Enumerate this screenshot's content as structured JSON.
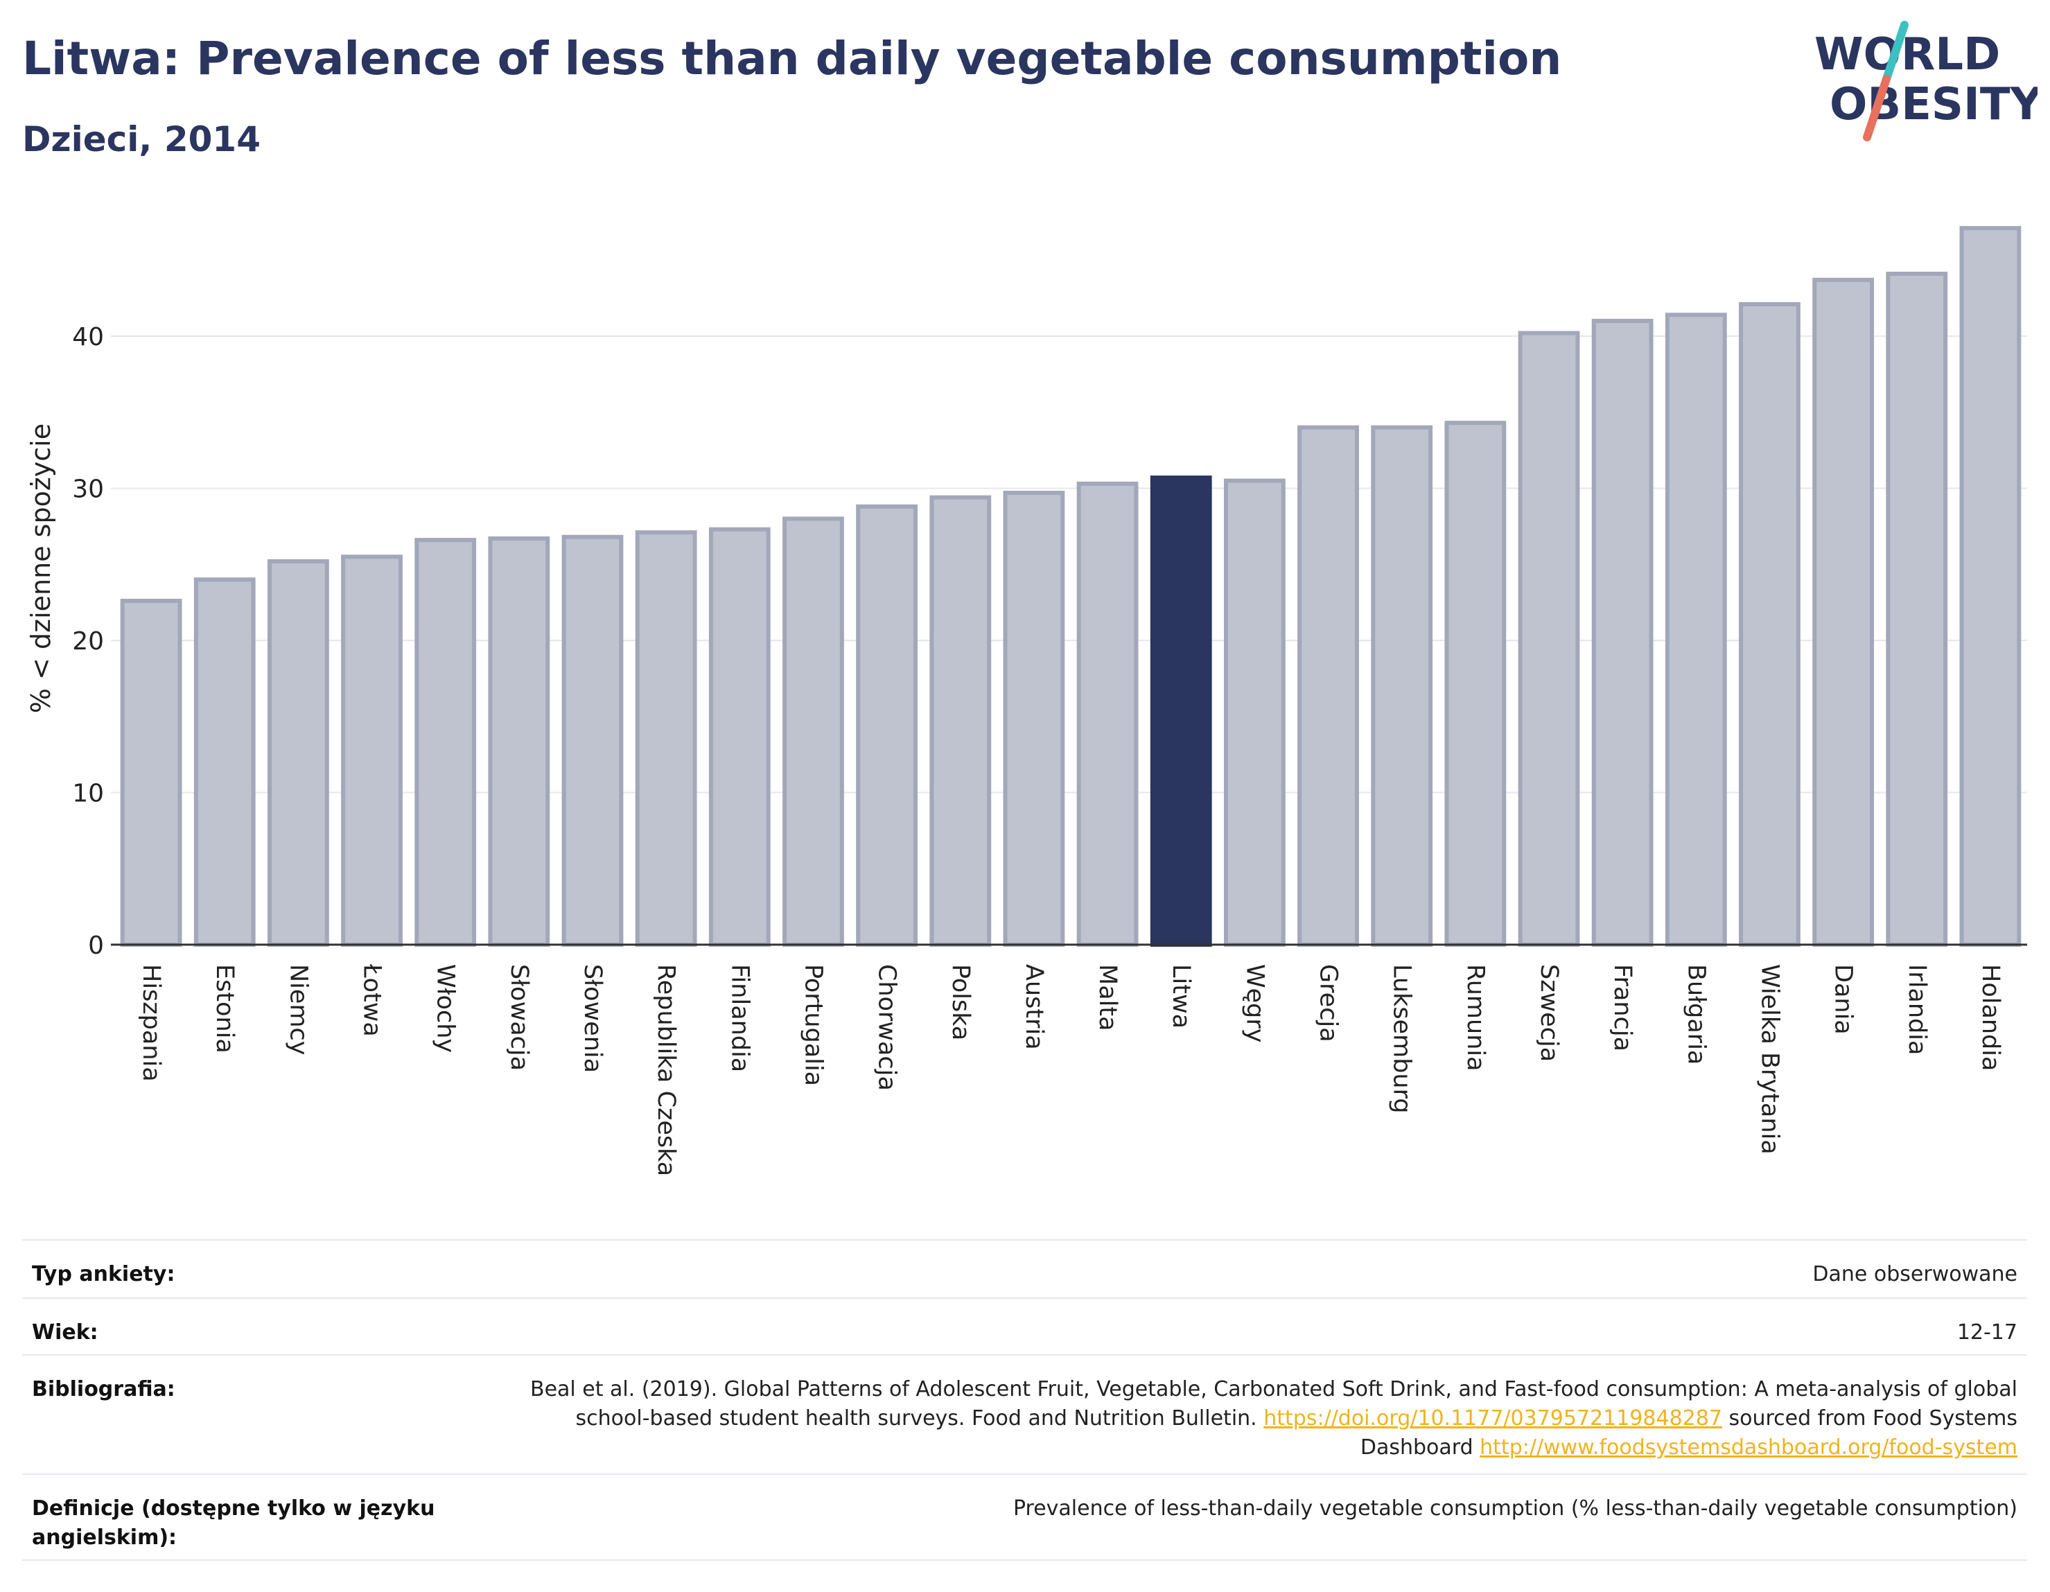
{
  "header": {
    "title": "Litwa: Prevalence of less than daily vegetable consumption",
    "subtitle": "Dzieci, 2014"
  },
  "logo": {
    "line1": "WORLD",
    "line2": "OBESITY"
  },
  "colors": {
    "bar_default": "#bfc2cf",
    "bar_default_stroke": "#a2a7ba",
    "bar_highlight": "#2a3560",
    "title": "#2a3560",
    "link": "#f0b31c",
    "logo_teal": "#3cc0c0",
    "logo_coral": "#e8705e"
  },
  "chart_data": {
    "type": "bar",
    "ylabel": "% < dzienne spożycie",
    "ylim": [
      0,
      48
    ],
    "yticks": [
      0,
      10,
      20,
      30,
      40
    ],
    "grid": true,
    "highlight": "Litwa",
    "categories": [
      "Hiszpania",
      "Estonia",
      "Niemcy",
      "Łotwa",
      "Włochy",
      "Słowacja",
      "Słowenia",
      "Republika Czeska",
      "Finlandia",
      "Portugalia",
      "Chorwacja",
      "Polska",
      "Austria",
      "Malta",
      "Litwa",
      "Węgry",
      "Grecja",
      "Luksemburg",
      "Rumunia",
      "Szwecja",
      "Francja",
      "Bułgaria",
      "Wielka Brytania",
      "Dania",
      "Irlandia",
      "Holandia"
    ],
    "values": [
      22.6,
      24.0,
      25.2,
      25.5,
      26.6,
      26.7,
      26.8,
      27.1,
      27.3,
      28.0,
      28.8,
      29.4,
      29.7,
      30.3,
      30.7,
      30.5,
      34.0,
      34.0,
      34.3,
      40.2,
      41.0,
      41.4,
      42.1,
      43.7,
      44.1,
      47.1
    ]
  },
  "meta": {
    "survey_type_label": "Typ ankiety:",
    "survey_type_value": "Dane obserwowane",
    "age_label": "Wiek:",
    "age_value": "12-17",
    "bibliography_label": "Bibliografia:",
    "bibliography_text1": "Beal et al. (2019). Global Patterns of Adolescent Fruit, Vegetable, Carbonated Soft Drink, and Fast-food consumption: A meta-analysis of global school-based student health surveys. Food and Nutrition Bulletin. ",
    "bibliography_link1": "https://doi.org/10.1177/0379572119848287",
    "bibliography_text2": " sourced from Food Systems Dashboard ",
    "bibliography_link2": "http://www.foodsystemsdashboard.org/food-system",
    "definitions_label": "Definicje (dostępne tylko w języku angielskim):",
    "definitions_value": "Prevalence of less-than-daily vegetable consumption (% less-than-daily vegetable consumption)"
  }
}
